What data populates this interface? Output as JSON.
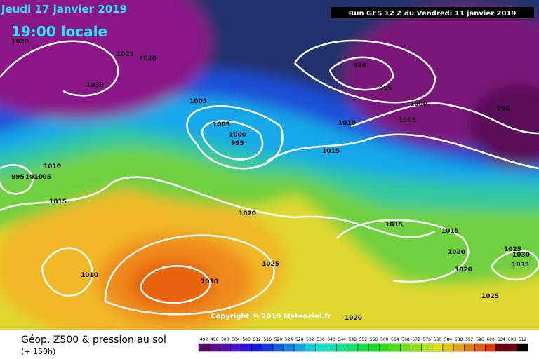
{
  "header": {
    "date": "Jeudi 17 janvier 2019",
    "time": "19:00 locale",
    "run": "Run GFS 12 Z du Vendredi 11 janvier 2019"
  },
  "copyright": "Copyright © 2019 Meteociel.fr",
  "footer": {
    "title": "Géop. Z500 & pression au sol",
    "lead": "(+ 150h)"
  },
  "isobar_labels": [
    "1020",
    "1025",
    "1020",
    "1030",
    "1005",
    "1005",
    "1000",
    "995",
    "1010",
    "995",
    "1010",
    "1005",
    "1015",
    "1020",
    "1010",
    "1030",
    "1025",
    "990",
    "995",
    "1000",
    "1005",
    "995",
    "1010",
    "1015",
    "1015",
    "1015",
    "1020",
    "1025",
    "1030",
    "1020",
    "1035",
    "1025",
    "1020"
  ],
  "scale": [
    492,
    496,
    500,
    504,
    508,
    512,
    516,
    520,
    524,
    528,
    532,
    536,
    540,
    544,
    548,
    552,
    556,
    560,
    564,
    568,
    572,
    576,
    580,
    584,
    588,
    592,
    596,
    600,
    604,
    608,
    612
  ]
}
